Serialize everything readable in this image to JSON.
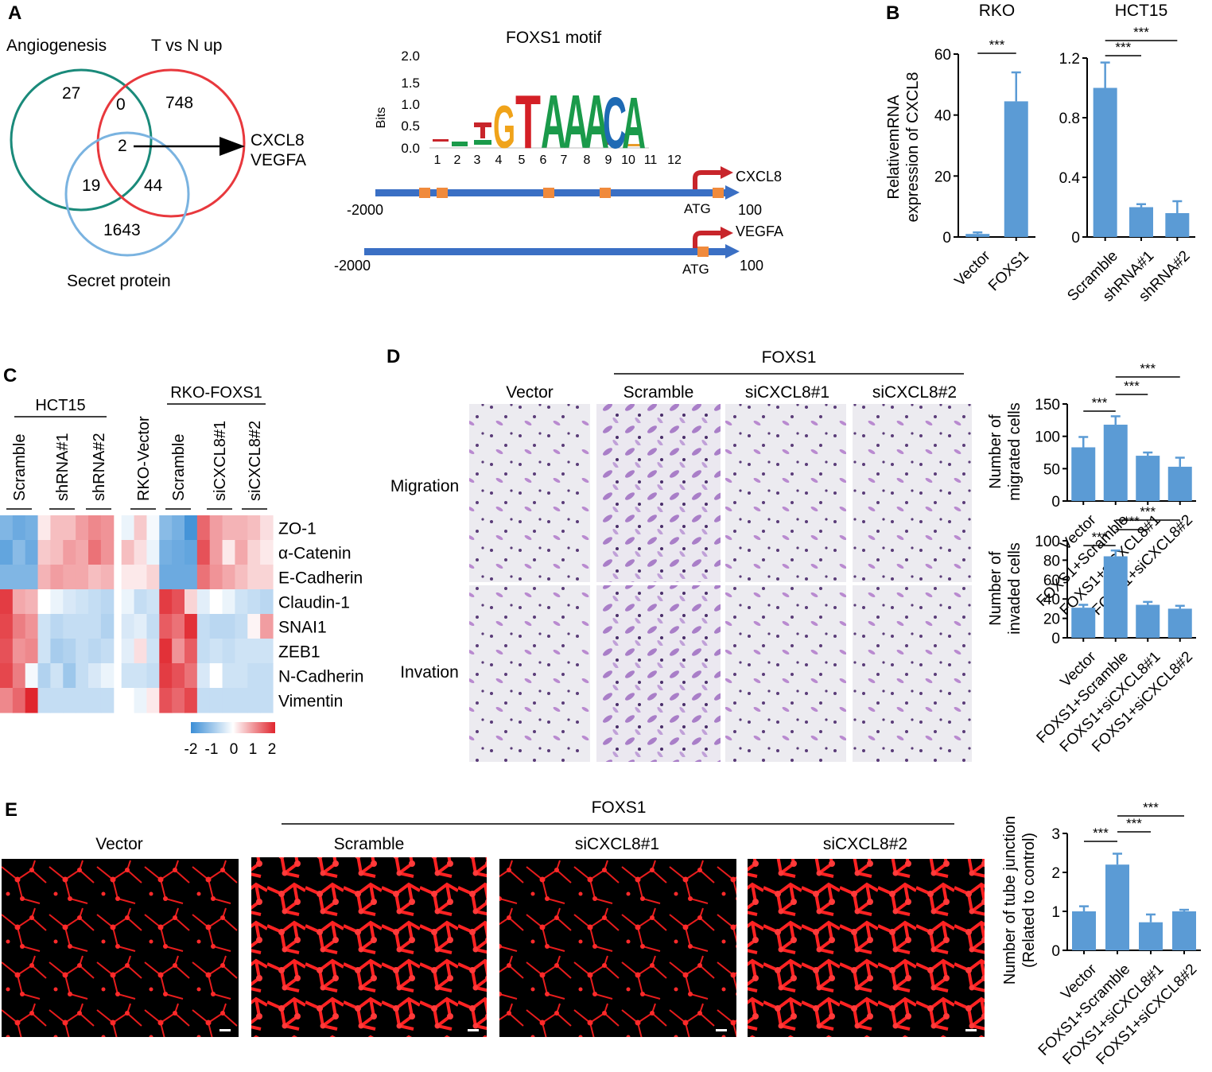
{
  "colors": {
    "bar": "#5b9bd5",
    "venn_angio": "#1a8a7a",
    "venn_tvsn": "#e8383d",
    "venn_secret": "#7ab3e0",
    "promoter": "#3a6fc4",
    "site": "#f08a3c",
    "tss_arrow": "#c8252b",
    "heat_low": "#3b8ed6",
    "heat_mid": "#ffffff",
    "heat_high": "#e0262e",
    "stain": "#9a63b8",
    "tube": "#ff2020"
  },
  "panelA": {
    "letter": "A",
    "venn": {
      "set1": "Angiogenesis",
      "set2": "T vs N up",
      "set3": "Secret protein",
      "counts": [
        "27",
        "0",
        "748",
        "2",
        "19",
        "44",
        "1643"
      ],
      "hit_genes": [
        "CXCL8",
        "VEGFA"
      ]
    },
    "motif": {
      "title": "FOXS1 motif",
      "ylabel": "Bits",
      "yticks": [
        "2.0",
        "1.5",
        "1.0",
        "0.5",
        "0.0"
      ],
      "positions": [
        "1",
        "2",
        "3",
        "4",
        "5",
        "6",
        "7",
        "8",
        "9",
        "10",
        "11",
        "12"
      ],
      "letters": [
        "G",
        "T",
        "A",
        "A",
        "A",
        "C",
        "A"
      ]
    },
    "promoters": [
      {
        "gene": "CXCL8",
        "start": "-2000",
        "end": "100",
        "atg": "ATG"
      },
      {
        "gene": "VEGFA",
        "start": "-2000",
        "end": "100",
        "atg": "ATG"
      }
    ]
  },
  "panelB": {
    "letter": "B",
    "ylabel": [
      "RelativemRNA",
      "expression of CXCL8"
    ],
    "chart_data": [
      {
        "type": "bar",
        "title": "RKO",
        "categories": [
          "Vector",
          "FOXS1"
        ],
        "values": [
          1,
          44.5
        ],
        "errors": [
          0.5,
          9.5
        ],
        "ylim": [
          0,
          60
        ],
        "yticks": [
          "0",
          "20",
          "40",
          "60"
        ],
        "significance": [
          "***"
        ]
      },
      {
        "type": "bar",
        "title": "HCT15",
        "categories": [
          "Scramble",
          "shRNA#1",
          "shRNA#2"
        ],
        "values": [
          1.0,
          0.2,
          0.16
        ],
        "errors": [
          0.17,
          0.02,
          0.08
        ],
        "ylim": [
          0,
          1.2
        ],
        "yticks": [
          "0",
          "0.4",
          "0.8",
          "1.2"
        ],
        "significance": [
          "***",
          "***"
        ]
      }
    ]
  },
  "panelC": {
    "letter": "C",
    "group1": "HCT15",
    "group2": "RKO-FOXS1",
    "columns": [
      "Scramble",
      "shRNA#1",
      "shRNA#2",
      "RKO-Vector",
      "Scramble",
      "siCXCL8#1",
      "siCXCL8#2"
    ],
    "genes": [
      "ZO-1",
      "α-Catenin",
      "E-Cadherin",
      "Claudin-1",
      "SNAI1",
      "ZEB1",
      "N-Cadherin",
      "Vimentin"
    ],
    "scale": [
      "-2",
      "-1",
      "0",
      "1",
      "2"
    ],
    "chart_data": {
      "type": "heatmap",
      "values": [
        [
          -1.3,
          -1.5,
          -1.4,
          0.2,
          0.6,
          0.6,
          0.9,
          1.1,
          1.0,
          -0.2,
          0.5,
          -0.1,
          -1.2,
          -1.4,
          -1.9,
          1.4,
          0.9,
          0.7,
          0.7,
          0.6,
          0.3
        ],
        [
          -1.6,
          -1.2,
          -1.5,
          0.5,
          0.6,
          0.9,
          0.8,
          1.3,
          1.0,
          0.6,
          0.3,
          -0.2,
          -1.4,
          -1.5,
          -1.6,
          1.6,
          0.9,
          0.2,
          0.8,
          0.4,
          0.2
        ],
        [
          -1.3,
          -1.3,
          -1.3,
          0.7,
          0.9,
          0.8,
          0.8,
          0.6,
          0.7,
          0.2,
          0.2,
          0.4,
          -1.5,
          -1.5,
          -1.5,
          1.3,
          1.0,
          0.8,
          0.6,
          0.4,
          0.4
        ],
        [
          1.8,
          0.8,
          0.7,
          0.0,
          -0.2,
          -0.4,
          -0.5,
          -0.6,
          -0.7,
          -0.2,
          -0.6,
          -0.5,
          1.8,
          1.6,
          0.4,
          -0.3,
          0.0,
          -0.2,
          -0.5,
          -0.6,
          -0.7
        ],
        [
          1.7,
          1.2,
          1.0,
          -0.5,
          -0.7,
          -0.6,
          -0.6,
          -0.6,
          -0.8,
          -0.4,
          -0.3,
          -0.6,
          1.5,
          1.3,
          1.9,
          -0.6,
          -0.7,
          -0.7,
          -0.6,
          0.1,
          0.9
        ],
        [
          1.6,
          1.0,
          1.1,
          -0.5,
          -0.9,
          -0.8,
          -0.6,
          -0.7,
          -0.6,
          -0.3,
          0.3,
          -0.5,
          1.9,
          1.0,
          1.5,
          -0.6,
          -0.5,
          -0.6,
          -0.5,
          -0.5,
          -0.5
        ],
        [
          1.7,
          1.2,
          -0.1,
          -0.8,
          -0.5,
          -1.0,
          -0.6,
          -0.4,
          -0.2,
          -0.5,
          -0.5,
          -0.6,
          1.8,
          1.6,
          1.3,
          -0.4,
          0.0,
          -0.5,
          -0.5,
          -0.6,
          -0.6
        ],
        [
          1.1,
          1.4,
          2.0,
          -0.6,
          -0.6,
          -0.6,
          -0.6,
          -0.6,
          -0.6,
          0.0,
          -0.2,
          0.2,
          1.6,
          1.4,
          1.7,
          -0.6,
          -0.6,
          -0.6,
          -0.6,
          -0.6,
          -0.6
        ]
      ]
    }
  },
  "panelD": {
    "letter": "D",
    "group": "FOXS1",
    "conditions": [
      "Vector",
      "Scramble",
      "siCXCL8#1",
      "siCXCL8#2"
    ],
    "rows": [
      "Migration",
      "Invation"
    ],
    "chart_data": [
      {
        "type": "bar",
        "ylabel": [
          "Number of",
          "migrated cells"
        ],
        "categories": [
          "Vector",
          "FOXS1+Scramble",
          "FOXS1+siCXCL8#1",
          "FOXS1+siCXCL8#2"
        ],
        "values": [
          83,
          118,
          70,
          53
        ],
        "errors": [
          16,
          13,
          5,
          14
        ],
        "ylim": [
          0,
          150
        ],
        "yticks": [
          "0",
          "50",
          "100",
          "150"
        ],
        "significance": [
          "***",
          "***",
          "***"
        ]
      },
      {
        "type": "bar",
        "ylabel": [
          "Number of",
          "invaded cells"
        ],
        "categories": [
          "Vector",
          "FOXS1+Scramble",
          "FOXS1+siCXCL8#1",
          "FOXS1+siCXCL8#2"
        ],
        "values": [
          31,
          84,
          34,
          30
        ],
        "errors": [
          3,
          6,
          3,
          3
        ],
        "ylim": [
          0,
          100
        ],
        "yticks": [
          "0",
          "20",
          "40",
          "60",
          "80",
          "100"
        ],
        "significance": [
          "***",
          "***",
          "***"
        ]
      }
    ]
  },
  "panelE": {
    "letter": "E",
    "group": "FOXS1",
    "conditions": [
      "Vector",
      "Scramble",
      "siCXCL8#1",
      "siCXCL8#2"
    ],
    "chart_data": {
      "type": "bar",
      "ylabel": [
        "Number of tube junction",
        "(Related to control)"
      ],
      "categories": [
        "Vector",
        "FOXS1+Scramble",
        "FOXS1+siCXCL8#1",
        "FOXS1+siCXCL8#2"
      ],
      "values": [
        1.0,
        2.2,
        0.72,
        1.0
      ],
      "errors": [
        0.13,
        0.28,
        0.2,
        0.04
      ],
      "ylim": [
        0,
        3
      ],
      "yticks": [
        "0",
        "1",
        "2",
        "3"
      ],
      "significance": [
        "***",
        "***",
        "***"
      ]
    }
  }
}
